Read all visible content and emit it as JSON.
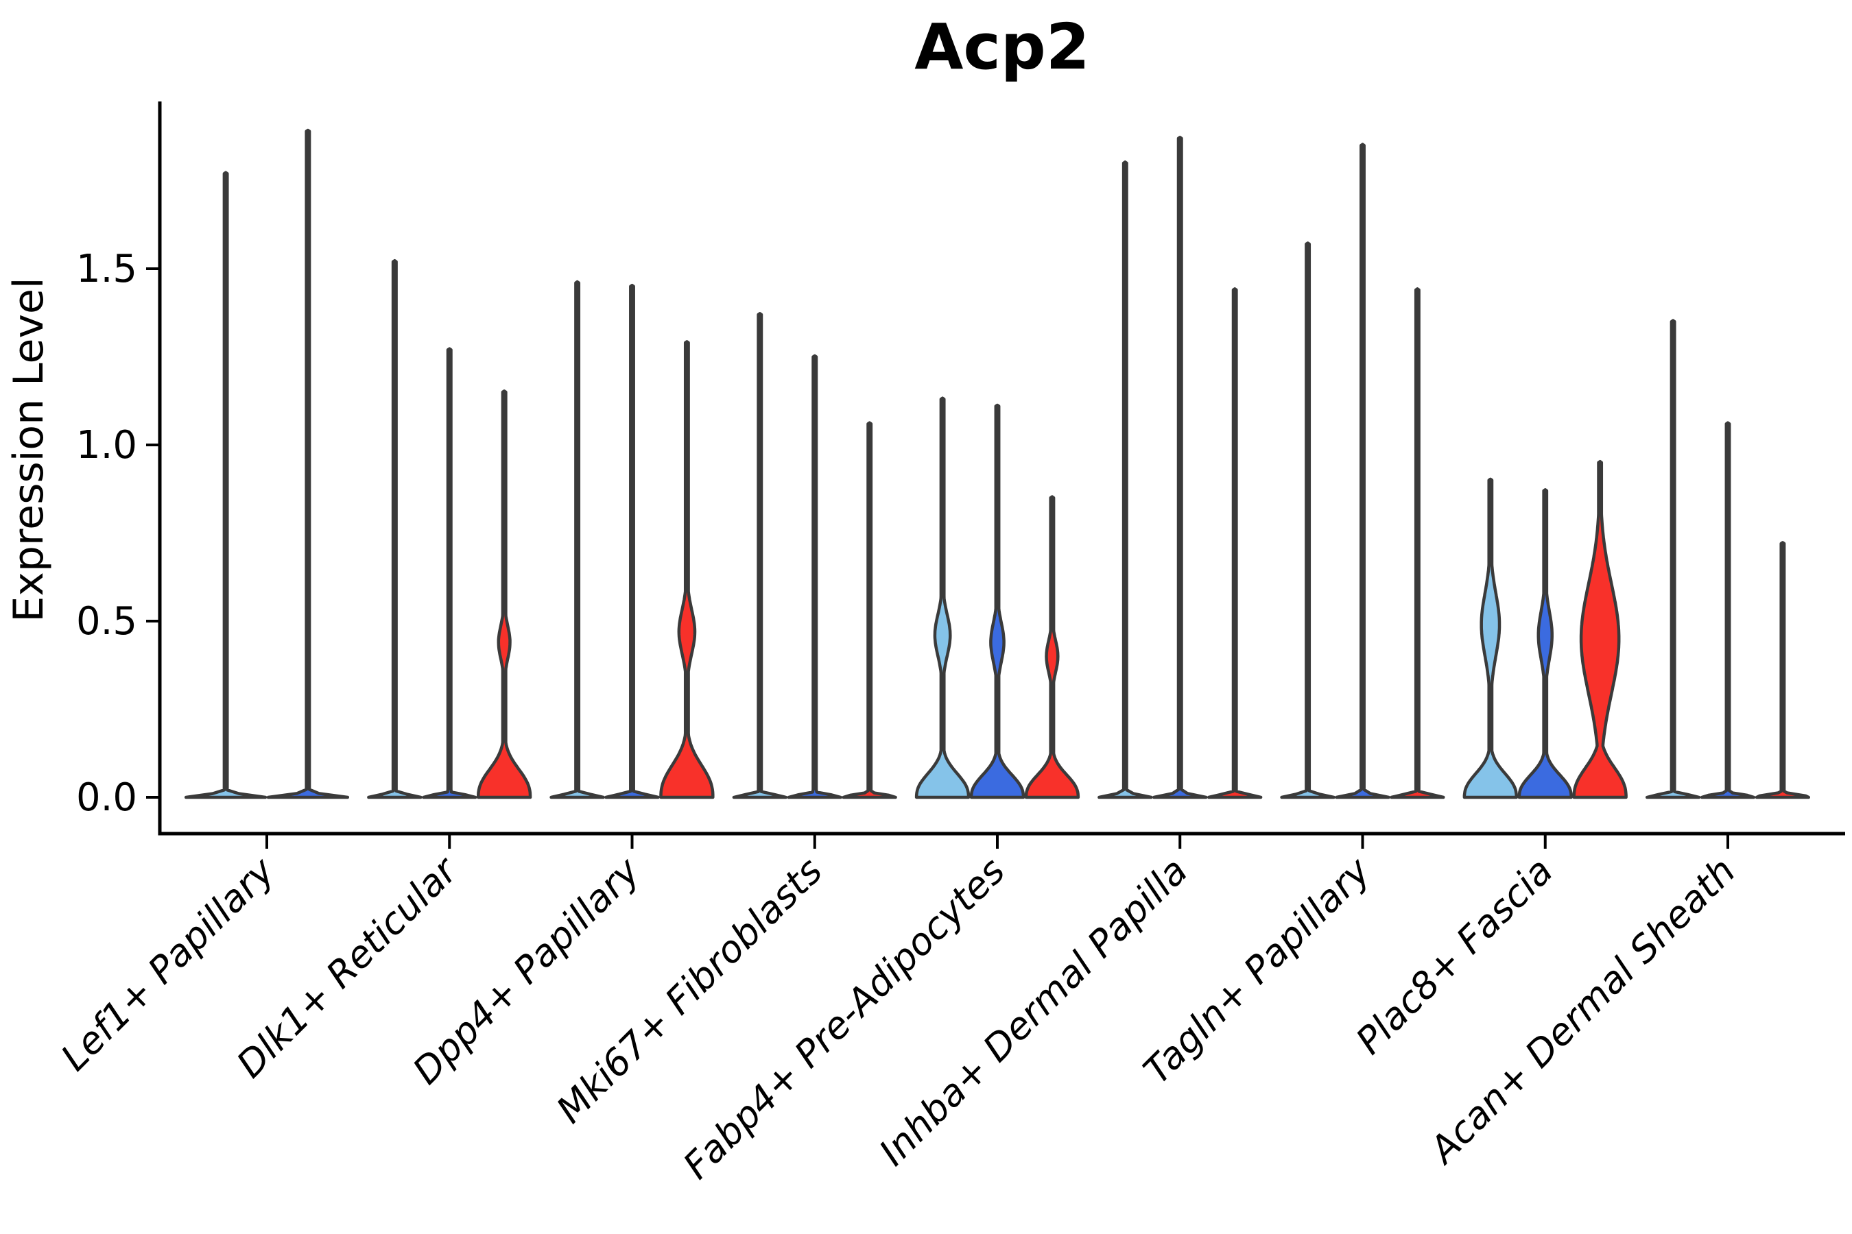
{
  "title": "Acp2",
  "y_axis": {
    "label": "Expression Level",
    "ticks": [
      0.0,
      0.5,
      1.0,
      1.5
    ],
    "tick_labels": [
      "0.0",
      "0.5",
      "1.0",
      "1.5"
    ]
  },
  "colors": {
    "split_lightblue": "#85C3E9",
    "split_blue": "#3B6BE0",
    "split_red": "#F8312A",
    "violin_outline": "#3A3A3A",
    "axis": "#000000",
    "background": "#FFFFFF"
  },
  "chart_data": {
    "type": "violin",
    "title": "Acp2",
    "xlabel": "",
    "ylabel": "Expression Level",
    "ylim": [
      0,
      1.97
    ],
    "grid": false,
    "legend": "none",
    "categories": [
      "Lef1+ Papillary",
      "Dlk1+ Reticular",
      "Dpp4+ Papillary",
      "Mki67+ Fibroblasts",
      "Fabp4+ Pre-Adipocytes",
      "Inhba+ Dermal Papilla",
      "Tagln+ Papillary",
      "Plac8+ Fascia",
      "Acan+ Dermal Sheath"
    ],
    "groups": [
      {
        "category": "Lef1+ Papillary",
        "violins": [
          {
            "color": "#85C3E9",
            "max": 1.77,
            "shape": "spike",
            "mound_h": 0.01
          },
          {
            "color": "#3B6BE0",
            "max": 1.89,
            "shape": "spike",
            "mound_h": 0.01
          }
        ]
      },
      {
        "category": "Dlk1+ Reticular",
        "violins": [
          {
            "color": "#85C3E9",
            "max": 1.52,
            "shape": "spike",
            "mound_h": 0.01
          },
          {
            "color": "#3B6BE0",
            "max": 1.27,
            "shape": "spike",
            "mound_h": 0.01
          },
          {
            "color": "#F8312A",
            "max": 1.15,
            "shape": "violin",
            "mound_h": 0.1,
            "bulge": {
              "center": 0.44,
              "spread": 0.066,
              "width": 0.21,
              "power": 2
            }
          }
        ]
      },
      {
        "category": "Dpp4+ Papillary",
        "violins": [
          {
            "color": "#85C3E9",
            "max": 1.46,
            "shape": "spike",
            "mound_h": 0.01
          },
          {
            "color": "#3B6BE0",
            "max": 1.45,
            "shape": "spike",
            "mound_h": 0.01
          },
          {
            "color": "#F8312A",
            "max": 1.29,
            "shape": "violin",
            "mound_h": 0.115,
            "bulge": {
              "center": 0.47,
              "spread": 0.088,
              "width": 0.29,
              "power": 2
            }
          }
        ]
      },
      {
        "category": "Mki67+ Fibroblasts",
        "violins": [
          {
            "color": "#85C3E9",
            "max": 1.37,
            "shape": "spike",
            "mound_h": 0.01
          },
          {
            "color": "#3B6BE0",
            "max": 1.25,
            "shape": "spike",
            "mound_h": 0.01
          },
          {
            "color": "#F8312A",
            "max": 1.06,
            "shape": "spike",
            "mound_h": 0.01
          }
        ]
      },
      {
        "category": "Fabp4+ Pre-Adipocytes",
        "violins": [
          {
            "color": "#85C3E9",
            "max": 1.13,
            "shape": "violin",
            "mound_h": 0.085,
            "bulge": {
              "center": 0.46,
              "spread": 0.083,
              "width": 0.28,
              "power": 2
            }
          },
          {
            "color": "#3B6BE0",
            "max": 1.11,
            "shape": "violin",
            "mound_h": 0.08,
            "bulge": {
              "center": 0.44,
              "spread": 0.078,
              "width": 0.24,
              "power": 2
            }
          },
          {
            "color": "#F8312A",
            "max": 0.85,
            "shape": "violin",
            "mound_h": 0.08,
            "bulge": {
              "center": 0.4,
              "spread": 0.063,
              "width": 0.21,
              "power": 2
            }
          }
        ]
      },
      {
        "category": "Inhba+ Dermal Papilla",
        "violins": [
          {
            "color": "#85C3E9",
            "max": 1.8,
            "shape": "spike",
            "mound_h": 0.01
          },
          {
            "color": "#3B6BE0",
            "max": 1.87,
            "shape": "spike",
            "mound_h": 0.01
          },
          {
            "color": "#F8312A",
            "max": 1.44,
            "shape": "spike",
            "mound_h": 0.01
          }
        ]
      },
      {
        "category": "Tagln+ Papillary",
        "violins": [
          {
            "color": "#85C3E9",
            "max": 1.57,
            "shape": "spike",
            "mound_h": 0.01
          },
          {
            "color": "#3B6BE0",
            "max": 1.85,
            "shape": "spike",
            "mound_h": 0.01
          },
          {
            "color": "#F8312A",
            "max": 1.44,
            "shape": "spike",
            "mound_h": 0.01
          }
        ]
      },
      {
        "category": "Plac8+ Fascia",
        "violins": [
          {
            "color": "#85C3E9",
            "max": 0.9,
            "shape": "violin",
            "mound_h": 0.085,
            "bulge": {
              "center": 0.49,
              "spread": 0.125,
              "width": 0.33,
              "power": 2
            }
          },
          {
            "color": "#3B6BE0",
            "max": 0.87,
            "shape": "violin",
            "mound_h": 0.08,
            "bulge": {
              "center": 0.46,
              "spread": 0.095,
              "width": 0.25,
              "power": 2
            }
          },
          {
            "color": "#F8312A",
            "max": 0.95,
            "shape": "violin",
            "mound_h": 0.105,
            "bulge": {
              "center": 0.45,
              "spread": 0.22,
              "width": 0.69,
              "power": 2
            }
          }
        ]
      },
      {
        "category": "Acan+ Dermal Sheath",
        "violins": [
          {
            "color": "#85C3E9",
            "max": 1.35,
            "shape": "spike",
            "mound_h": 0.01
          },
          {
            "color": "#3B6BE0",
            "max": 1.06,
            "shape": "spike",
            "mound_h": 0.01
          },
          {
            "color": "#F8312A",
            "max": 0.72,
            "shape": "spike",
            "mound_h": 0.01
          }
        ]
      }
    ]
  }
}
